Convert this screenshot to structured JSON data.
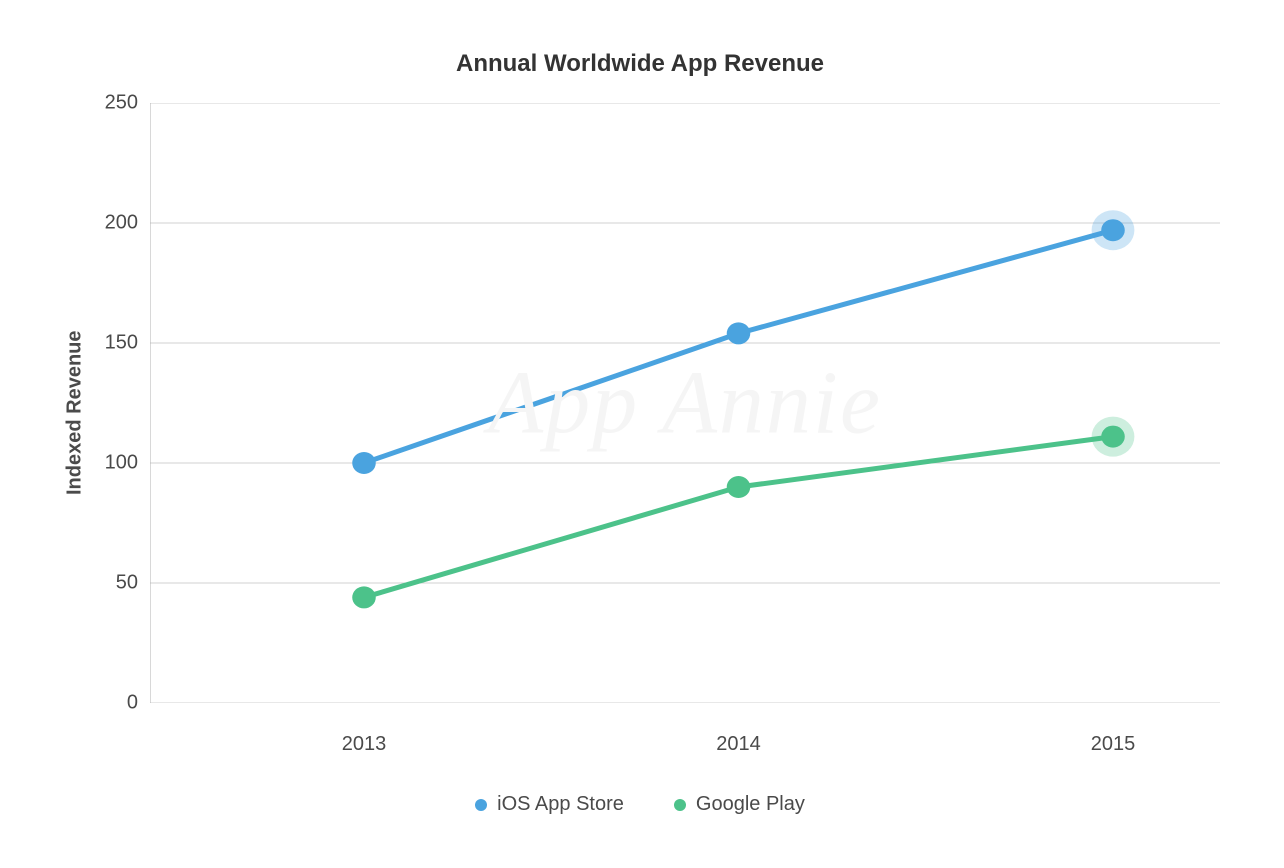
{
  "chart": {
    "type": "line",
    "title": "Annual Worldwide App Revenue",
    "title_fontsize": 24,
    "title_color": "#333333",
    "ylabel": "Indexed Revenue",
    "ylabel_fontsize": 20,
    "ylabel_color": "#4a4a4a",
    "background_color": "#ffffff",
    "grid_color": "#d0d0d0",
    "grid_width": 1,
    "axis_color": "#b0b0b0",
    "ylim": [
      0,
      250
    ],
    "ytick_step": 50,
    "yticks": [
      250,
      200,
      150,
      100,
      50,
      0
    ],
    "categories": [
      "2013",
      "2014",
      "2015"
    ],
    "x_positions_pct": [
      20,
      55,
      90
    ],
    "tick_fontsize": 20,
    "tick_color": "#4a4a4a",
    "line_width": 5,
    "marker_radius": 11,
    "last_marker_halo_radius": 20,
    "last_marker_halo_opacity": 0.28,
    "watermark": "App Annie",
    "watermark_color": "#f5f5f5",
    "series": [
      {
        "name": "iOS App Store",
        "color": "#4aa3df",
        "values": [
          100,
          154,
          197
        ]
      },
      {
        "name": "Google Play",
        "color": "#4cc28a",
        "values": [
          44,
          90,
          111
        ]
      }
    ],
    "legend_fontsize": 20,
    "legend_color": "#4a4a4a",
    "legend_marker_radius": 6
  }
}
